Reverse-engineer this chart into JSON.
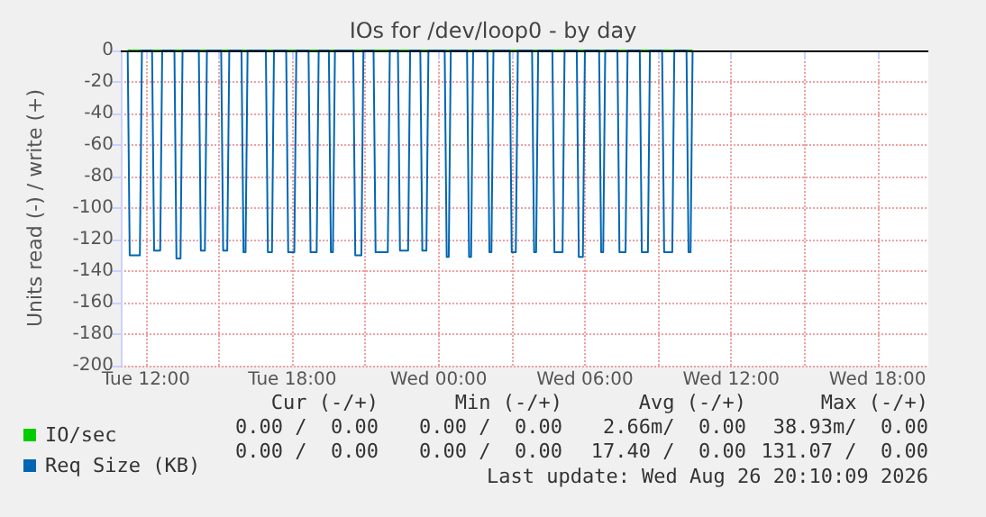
{
  "chart_data": {
    "type": "line",
    "title": "IOs for /dev/loop0 - by day",
    "ylabel": "Units read (-) / write (+)",
    "xlim": [
      "2026-08-25T10:58",
      "2026-08-26T20:05"
    ],
    "xticks": [
      {
        "value": "2026-08-25T12:00",
        "label": "Tue 12:00"
      },
      {
        "value": "2026-08-25T15:00",
        "label": null
      },
      {
        "value": "2026-08-25T18:00",
        "label": "Tue 18:00"
      },
      {
        "value": "2026-08-25T21:00",
        "label": null
      },
      {
        "value": "2026-08-26T00:00",
        "label": "Wed 00:00"
      },
      {
        "value": "2026-08-26T03:00",
        "label": null
      },
      {
        "value": "2026-08-26T06:00",
        "label": "Wed 06:00"
      },
      {
        "value": "2026-08-26T09:00",
        "label": null
      },
      {
        "value": "2026-08-26T12:00",
        "label": "Wed 12:00"
      },
      {
        "value": "2026-08-26T15:00",
        "label": null
      },
      {
        "value": "2026-08-26T18:00",
        "label": "Wed 18:00"
      }
    ],
    "ylim": [
      -200,
      0
    ],
    "yticks": [
      -200,
      -180,
      -160,
      -140,
      -120,
      -100,
      -80,
      -60,
      -40,
      -20,
      0
    ],
    "grid": true,
    "legend": "bottom left",
    "marker": "none",
    "line_style": "solid",
    "ref_lines": [
      {
        "axis": "y",
        "value": 0,
        "color": "#000000"
      }
    ],
    "series": [
      {
        "name": "IO/sec",
        "color": "#00cc00",
        "x": [
          "2026-08-25T11:15",
          "2026-08-26T10:25"
        ],
        "values": [
          0,
          0
        ]
      },
      {
        "name": "Req Size (KB)",
        "color": "#0066b3",
        "x": [
          "2026-08-25T11:15",
          "2026-08-25T11:20",
          "2026-08-25T11:45",
          "2026-08-25T11:50",
          "2026-08-25T12:15",
          "2026-08-25T12:20",
          "2026-08-25T12:35",
          "2026-08-25T12:40",
          "2026-08-25T13:10",
          "2026-08-25T13:15",
          "2026-08-25T13:25",
          "2026-08-25T13:30",
          "2026-08-25T14:10",
          "2026-08-25T14:15",
          "2026-08-25T14:25",
          "2026-08-25T14:30",
          "2026-08-25T15:05",
          "2026-08-25T15:10",
          "2026-08-25T15:20",
          "2026-08-25T15:25",
          "2026-08-25T15:55",
          "2026-08-25T16:00",
          "2026-08-25T16:05",
          "2026-08-25T16:10",
          "2026-08-25T16:55",
          "2026-08-25T17:00",
          "2026-08-25T17:10",
          "2026-08-25T17:15",
          "2026-08-25T17:45",
          "2026-08-25T17:50",
          "2026-08-25T18:05",
          "2026-08-25T18:10",
          "2026-08-25T18:40",
          "2026-08-25T18:45",
          "2026-08-25T19:00",
          "2026-08-25T19:05",
          "2026-08-25T19:30",
          "2026-08-25T19:35",
          "2026-08-25T19:40",
          "2026-08-25T19:45",
          "2026-08-25T20:30",
          "2026-08-25T20:35",
          "2026-08-25T20:50",
          "2026-08-25T20:55",
          "2026-08-25T21:20",
          "2026-08-25T21:25",
          "2026-08-25T21:55",
          "2026-08-25T22:00",
          "2026-08-25T22:20",
          "2026-08-25T22:25",
          "2026-08-25T22:45",
          "2026-08-25T22:50",
          "2026-08-25T23:15",
          "2026-08-25T23:20",
          "2026-08-25T23:30",
          "2026-08-25T23:35",
          "2026-08-26T00:15",
          "2026-08-26T00:20",
          "2026-08-26T00:25",
          "2026-08-26T00:30",
          "2026-08-26T01:10",
          "2026-08-26T01:15",
          "2026-08-26T01:20",
          "2026-08-26T01:25",
          "2026-08-26T02:00",
          "2026-08-26T02:05",
          "2026-08-26T02:10",
          "2026-08-26T02:15",
          "2026-08-26T02:55",
          "2026-08-26T03:00",
          "2026-08-26T03:10",
          "2026-08-26T03:15",
          "2026-08-26T03:50",
          "2026-08-26T03:55",
          "2026-08-26T04:00",
          "2026-08-26T04:05",
          "2026-08-26T04:40",
          "2026-08-26T04:45",
          "2026-08-26T05:05",
          "2026-08-26T05:10",
          "2026-08-26T05:40",
          "2026-08-26T05:45",
          "2026-08-26T05:55",
          "2026-08-26T06:00",
          "2026-08-26T06:35",
          "2026-08-26T06:40",
          "2026-08-26T06:45",
          "2026-08-26T06:50",
          "2026-08-26T07:20",
          "2026-08-26T07:25",
          "2026-08-26T07:40",
          "2026-08-26T07:45",
          "2026-08-26T08:15",
          "2026-08-26T08:20",
          "2026-08-26T08:35",
          "2026-08-26T08:40",
          "2026-08-26T09:10",
          "2026-08-26T09:15",
          "2026-08-26T09:35",
          "2026-08-26T09:40",
          "2026-08-26T10:10",
          "2026-08-26T10:15",
          "2026-08-26T10:20",
          "2026-08-26T10:25"
        ],
        "values": [
          0,
          -130,
          -130,
          0,
          0,
          -127,
          -127,
          0,
          0,
          -132,
          -132,
          0,
          0,
          -127,
          -127,
          0,
          0,
          -127,
          -127,
          0,
          0,
          -128,
          -128,
          0,
          0,
          -128,
          -128,
          0,
          0,
          -128,
          -128,
          0,
          0,
          -128,
          -128,
          0,
          0,
          -128,
          -128,
          0,
          0,
          -130,
          -130,
          0,
          0,
          -128,
          -128,
          0,
          0,
          -127,
          -127,
          0,
          0,
          -127,
          -127,
          0,
          0,
          -131,
          -131,
          0,
          0,
          -131,
          -131,
          0,
          0,
          -128,
          -128,
          0,
          0,
          -128,
          -128,
          0,
          0,
          -128,
          -128,
          0,
          0,
          -128,
          -128,
          0,
          0,
          -131,
          -131,
          0,
          0,
          -128,
          -128,
          0,
          0,
          -128,
          -128,
          0,
          0,
          -128,
          -128,
          0,
          0,
          -128,
          -128,
          0,
          0,
          -128,
          -128,
          0
        ]
      }
    ],
    "annotations": [
      "Cur (-/+)",
      "Min (-/+)",
      "Avg (-/+)",
      "Max (-/+)",
      "0.00 /  0.00",
      "0.00 /  0.00",
      "2.66m/  0.00",
      "38.93m/  0.00",
      "0.00 /  0.00",
      "0.00 /  0.00",
      "17.40 /  0.00",
      "131.07 /  0.00",
      "Last update: Wed Aug 26 20:10:09 2026"
    ]
  }
}
